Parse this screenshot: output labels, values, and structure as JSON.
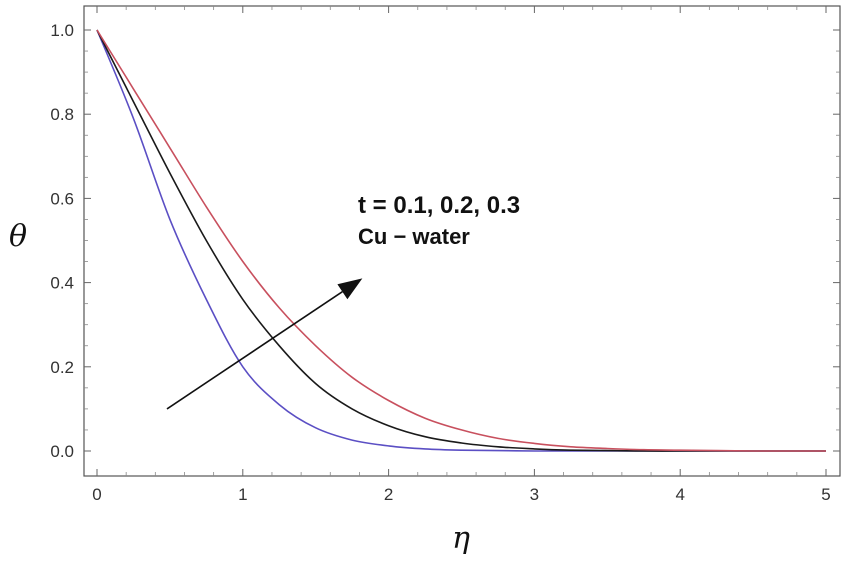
{
  "chart_data": {
    "type": "line",
    "xlabel": "η",
    "ylabel": "θ",
    "xlim": [
      0,
      5
    ],
    "ylim": [
      0,
      1
    ],
    "x_ticks": [
      "0",
      "1",
      "2",
      "3",
      "4",
      "5"
    ],
    "y_ticks": [
      "0.0",
      "0.2",
      "0.4",
      "0.6",
      "0.8",
      "1.0"
    ],
    "grid": false,
    "x": [
      0,
      0.25,
      0.5,
      0.75,
      1,
      1.25,
      1.5,
      1.75,
      2,
      2.25,
      2.5,
      2.75,
      3,
      3.25,
      3.5,
      3.75,
      4,
      4.25,
      4.5,
      4.75,
      5
    ],
    "series": [
      {
        "color": "#5b4fc4",
        "values": [
          1.0,
          0.79,
          0.55,
          0.36,
          0.2,
          0.11,
          0.055,
          0.026,
          0.012,
          0.005,
          0.002,
          0.001,
          0.0,
          0.0,
          0.0,
          0.0,
          0.0,
          0.0,
          0.0,
          0.0,
          0.0
        ]
      },
      {
        "color": "#1a1a1a",
        "values": [
          1.0,
          0.83,
          0.66,
          0.5,
          0.36,
          0.25,
          0.16,
          0.1,
          0.06,
          0.034,
          0.019,
          0.01,
          0.005,
          0.002,
          0.001,
          0.0,
          0.0,
          0.0,
          0.0,
          0.0,
          0.0
        ]
      },
      {
        "color": "#c8505e",
        "values": [
          1.0,
          0.86,
          0.72,
          0.58,
          0.45,
          0.34,
          0.25,
          0.175,
          0.12,
          0.078,
          0.05,
          0.03,
          0.018,
          0.01,
          0.006,
          0.003,
          0.002,
          0.001,
          0.0,
          0.0,
          0.0
        ]
      }
    ],
    "annotations": [
      {
        "text": "t = 0.1, 0.2, 0.3"
      },
      {
        "text": "Cu − water"
      }
    ],
    "arrow": {
      "from": [
        0.48,
        0.1
      ],
      "to": [
        1.82,
        0.41
      ]
    }
  }
}
